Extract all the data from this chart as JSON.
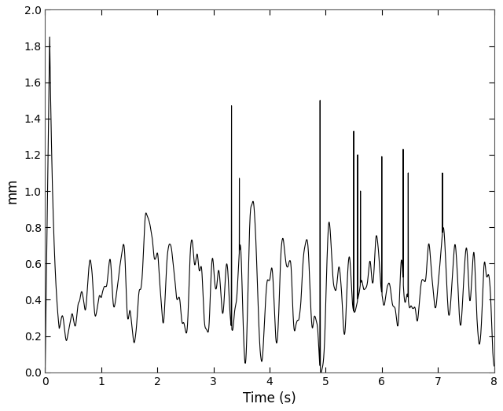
{
  "xlabel": "Time (s)",
  "ylabel": "mm",
  "xlim": [
    0,
    8
  ],
  "ylim": [
    0,
    2
  ],
  "xticks": [
    0,
    1,
    2,
    3,
    4,
    5,
    6,
    7,
    8
  ],
  "yticks": [
    0,
    0.2,
    0.4,
    0.6,
    0.8,
    1.0,
    1.2,
    1.4,
    1.6,
    1.8,
    2.0
  ],
  "line_color": "#000000",
  "line_width": 0.8,
  "background_color": "#ffffff",
  "figsize": [
    6.4,
    5.23
  ],
  "dpi": 100
}
